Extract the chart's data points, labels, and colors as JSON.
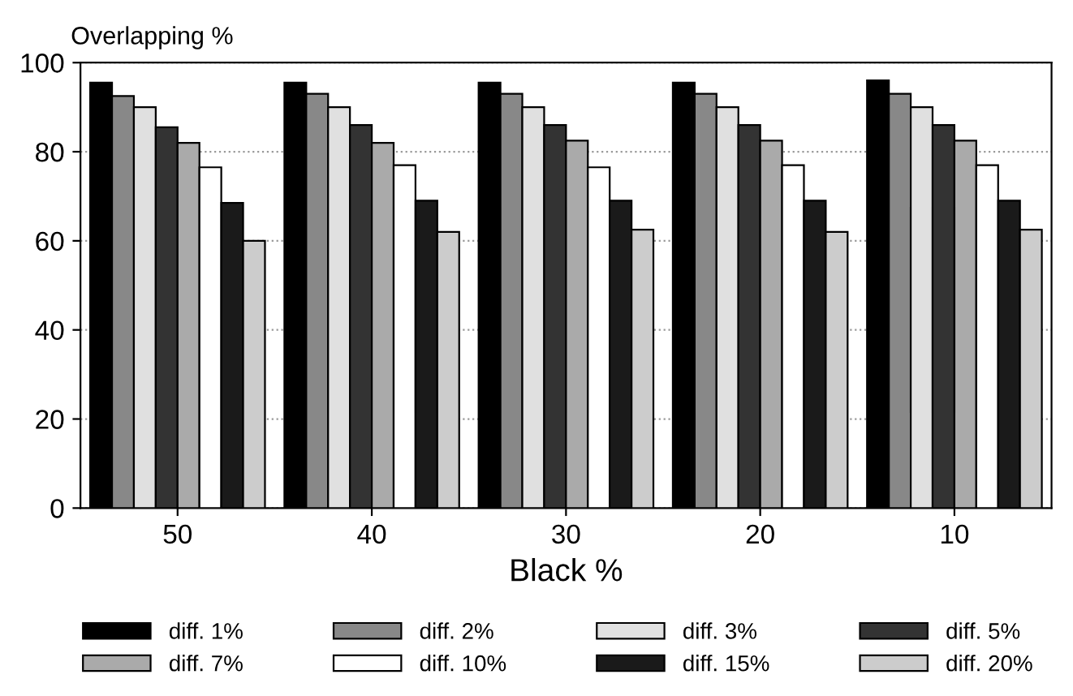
{
  "chart_data": {
    "type": "bar",
    "ylabel": "Overlapping %",
    "xlabel": "Black %",
    "categories": [
      "50",
      "40",
      "30",
      "20",
      "10"
    ],
    "series": [
      {
        "name": "diff. 1%",
        "color": "#000000",
        "values": [
          95.5,
          95.5,
          95.5,
          95.5,
          96
        ]
      },
      {
        "name": "diff. 2%",
        "color": "#888888",
        "values": [
          92.5,
          93,
          93,
          93,
          93
        ]
      },
      {
        "name": "diff. 3%",
        "color": "#e0e0e0",
        "values": [
          90,
          90,
          90,
          90,
          90
        ]
      },
      {
        "name": "diff. 5%",
        "color": "#333333",
        "values": [
          85.5,
          86,
          86,
          86,
          86
        ]
      },
      {
        "name": "diff. 7%",
        "color": "#aaaaaa",
        "values": [
          82,
          82,
          82.5,
          82.5,
          82.5
        ]
      },
      {
        "name": "diff. 10%",
        "color": "#ffffff",
        "values": [
          76.5,
          77,
          76.5,
          77,
          77
        ]
      },
      {
        "name": "diff. 15%",
        "color": "#1a1a1a",
        "values": [
          68.5,
          69,
          69,
          69,
          69
        ]
      },
      {
        "name": "diff. 20%",
        "color": "#cccccc",
        "values": [
          60,
          62,
          62.5,
          62,
          62.5
        ]
      }
    ],
    "ylim": [
      0,
      100
    ],
    "yticks": [
      0,
      20,
      40,
      60,
      80,
      100
    ],
    "grid": "y",
    "legend": "bottom"
  }
}
